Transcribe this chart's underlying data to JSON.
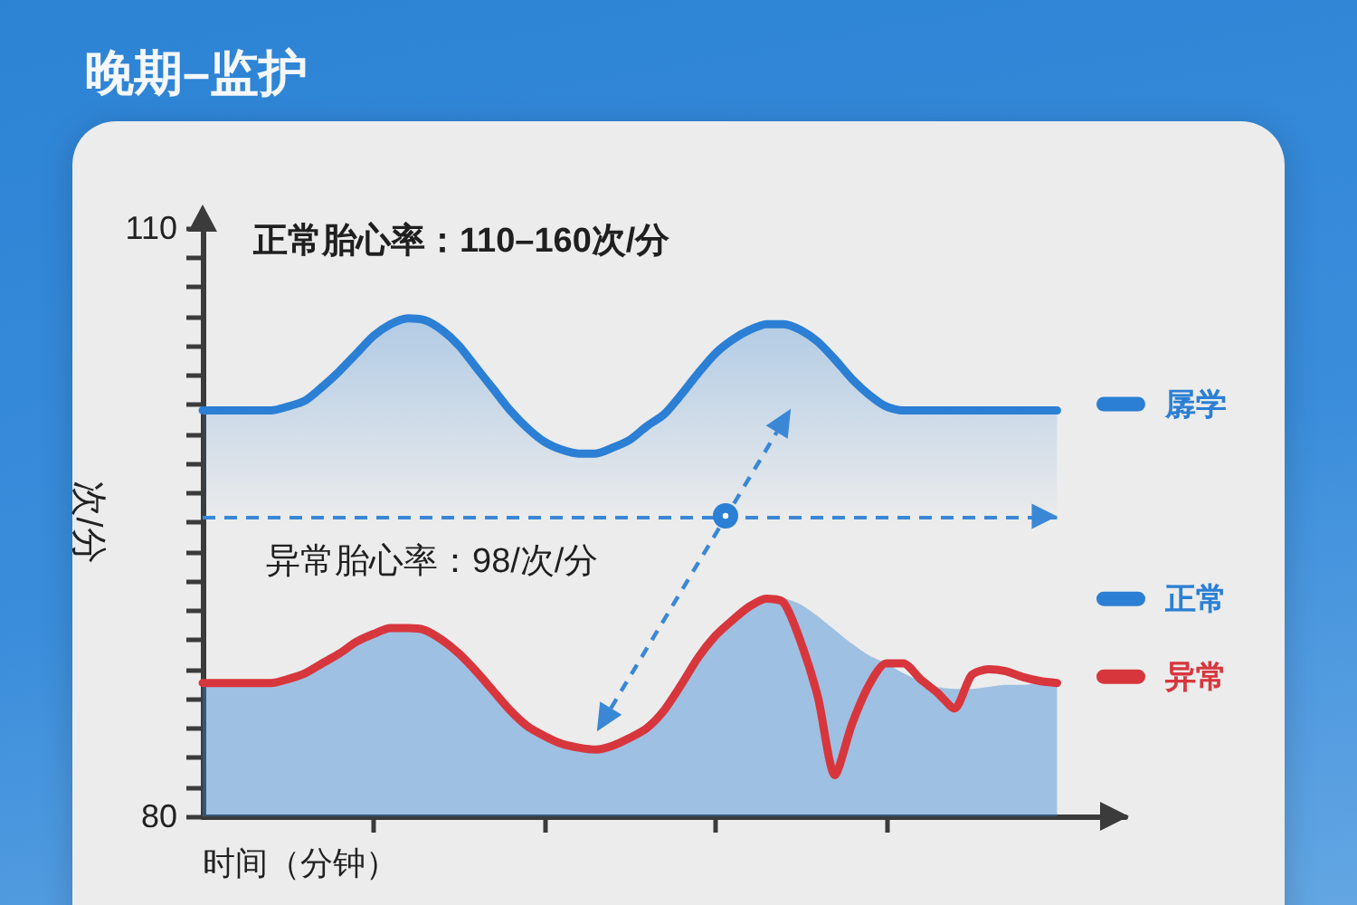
{
  "chart_data": {
    "type": "line",
    "title": "晚期–监护",
    "xlabel": "时间（分钟）",
    "ylabel": "次/分",
    "annotations": [
      "正常胎心率：110–160次/分",
      "异常胎心率：98/次/分"
    ],
    "categories": [
      null,
      null,
      null,
      null,
      null,
      null,
      null,
      null,
      null,
      null,
      null,
      null,
      null,
      null,
      null,
      null,
      null,
      null,
      null,
      null,
      null,
      null,
      null,
      null,
      null,
      null,
      null,
      null,
      null,
      null,
      null,
      null,
      null,
      null,
      null,
      null,
      null,
      null,
      null,
      null,
      null,
      null,
      null,
      null,
      null,
      null,
      null,
      null,
      null,
      null,
      null,
      null,
      null,
      null,
      null
    ],
    "series": [
      {
        "name": "孱学",
        "type": "area",
        "color": "#2b7fd4",
        "values": [
          100.7,
          100.7,
          100.7,
          100.7,
          100.7,
          100.9,
          101.2,
          101.9,
          102.7,
          103.6,
          104.5,
          105.1,
          105.4,
          105.3,
          104.8,
          104.0,
          102.9,
          101.8,
          100.7,
          99.8,
          99.1,
          98.7,
          98.5,
          98.5,
          98.8,
          99.2,
          99.9,
          100.5,
          101.5,
          102.6,
          103.6,
          104.3,
          104.8,
          105.1,
          105.1,
          104.8,
          104.2,
          103.3,
          102.3,
          101.5,
          100.9,
          100.7,
          100.7,
          100.7,
          100.7,
          100.7,
          100.7,
          100.7,
          100.7,
          100.7,
          100.7,
          null,
          null,
          null,
          null
        ]
      },
      {
        "name": "正常",
        "type": "area",
        "color": "#2b7fd4",
        "values": [
          86.8,
          86.8,
          86.8,
          86.8,
          86.8,
          87.0,
          87.3,
          87.8,
          88.3,
          88.9,
          89.3,
          89.6,
          89.6,
          89.5,
          89.0,
          88.3,
          87.4,
          86.4,
          85.4,
          84.6,
          84.1,
          83.7,
          83.5,
          83.4,
          83.6,
          84.0,
          84.5,
          85.4,
          86.7,
          88.1,
          89.2,
          90.0,
          90.7,
          91.1,
          91.1,
          90.8,
          90.2,
          89.5,
          88.8,
          88.2,
          87.8,
          87.3,
          86.9,
          86.6,
          86.5,
          86.5,
          86.6,
          86.7,
          86.7,
          86.8,
          86.8,
          null,
          null,
          null,
          null
        ]
      },
      {
        "name": "异常",
        "type": "line",
        "color": "#d8363d",
        "values": [
          86.8,
          86.8,
          86.8,
          86.8,
          86.8,
          87.0,
          87.3,
          87.8,
          88.3,
          88.9,
          89.3,
          89.6,
          89.6,
          89.5,
          89.0,
          88.3,
          87.4,
          86.4,
          85.4,
          84.6,
          84.1,
          83.7,
          83.5,
          83.4,
          83.6,
          84.0,
          84.5,
          85.4,
          86.7,
          88.1,
          89.2,
          90.0,
          90.7,
          91.1,
          90.9,
          88.9,
          86.1,
          82.1,
          84.7,
          86.7,
          87.8,
          87.8,
          87.0,
          86.3,
          85.5,
          87.2,
          87.5,
          87.4,
          87.1,
          86.9,
          86.8,
          null,
          null,
          null,
          null
        ]
      }
    ],
    "ylim": [
      80,
      110
    ],
    "yticks": [
      80,
      {
        "value": 81.5,
        "label": null
      },
      {
        "value": 83,
        "label": null
      },
      {
        "value": 84.5,
        "label": null
      },
      {
        "value": 86,
        "label": null
      },
      {
        "value": 87.5,
        "label": null
      },
      {
        "value": 89,
        "label": null
      },
      {
        "value": 90.5,
        "label": null
      },
      {
        "value": 92,
        "label": null
      },
      {
        "value": 93.5,
        "label": null
      },
      {
        "value": 95,
        "label": null
      },
      {
        "value": 96.5,
        "label": null
      },
      {
        "value": 98,
        "label": null
      },
      {
        "value": 99.5,
        "label": null
      },
      {
        "value": 101,
        "label": null
      },
      {
        "value": 102.5,
        "label": null
      },
      {
        "value": 104,
        "label": null
      },
      {
        "value": 105.5,
        "label": null
      },
      {
        "value": 107,
        "label": null
      },
      {
        "value": 108.5,
        "label": null
      },
      110
    ],
    "ref_lines": [
      {
        "axis": "y",
        "value": 95.3,
        "color": "#3a87d6",
        "line_style": "dashed"
      }
    ],
    "legend": "right",
    "marker": "none",
    "tick_labels": "y"
  }
}
